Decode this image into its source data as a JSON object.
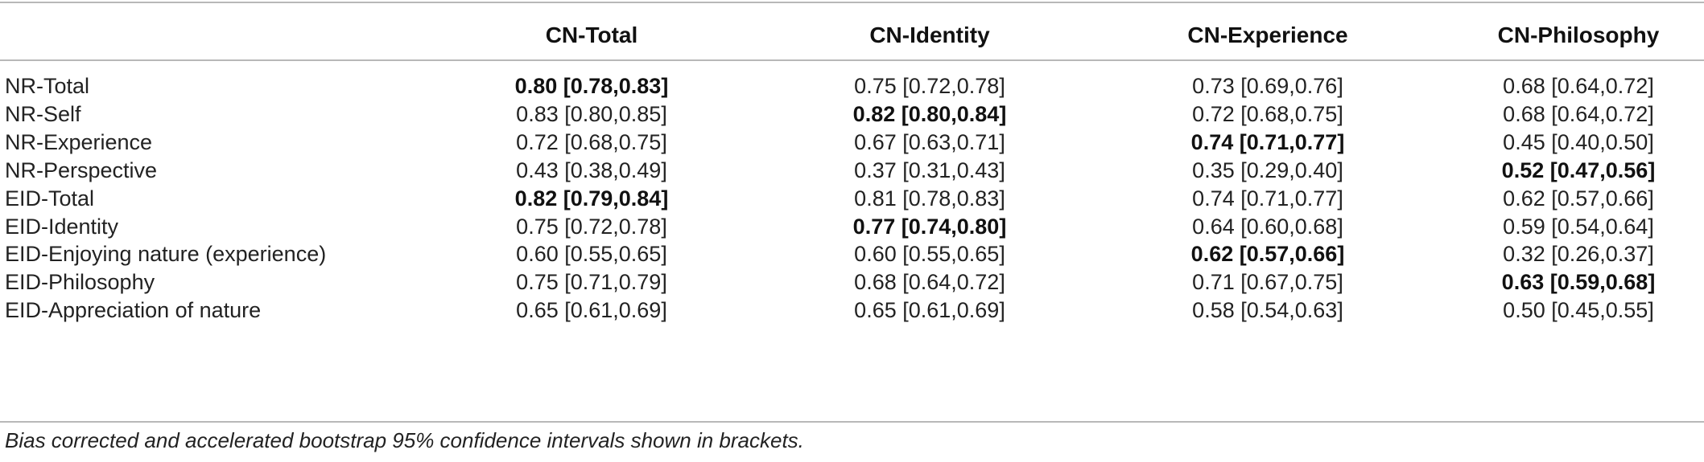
{
  "table": {
    "columns": [
      "",
      "CN-Total",
      "CN-Identity",
      "CN-Experience",
      "CN-Philosophy"
    ],
    "rows": [
      {
        "label": "NR-Total",
        "values": [
          "0.80 [0.78,0.83]",
          "0.75 [0.72,0.78]",
          "0.73 [0.69,0.76]",
          "0.68 [0.64,0.72]"
        ],
        "bold": [
          true,
          false,
          false,
          false
        ]
      },
      {
        "label": "NR-Self",
        "values": [
          "0.83 [0.80,0.85]",
          "0.82 [0.80,0.84]",
          "0.72 [0.68,0.75]",
          "0.68 [0.64,0.72]"
        ],
        "bold": [
          false,
          true,
          false,
          false
        ]
      },
      {
        "label": "NR-Experience",
        "values": [
          "0.72 [0.68,0.75]",
          "0.67 [0.63,0.71]",
          "0.74 [0.71,0.77]",
          "0.45 [0.40,0.50]"
        ],
        "bold": [
          false,
          false,
          true,
          false
        ]
      },
      {
        "label": "NR-Perspective",
        "values": [
          "0.43 [0.38,0.49]",
          "0.37 [0.31,0.43]",
          "0.35 [0.29,0.40]",
          "0.52 [0.47,0.56]"
        ],
        "bold": [
          false,
          false,
          false,
          true
        ]
      },
      {
        "label": "EID-Total",
        "values": [
          "0.82 [0.79,0.84]",
          "0.81 [0.78,0.83]",
          "0.74 [0.71,0.77]",
          "0.62 [0.57,0.66]"
        ],
        "bold": [
          true,
          false,
          false,
          false
        ]
      },
      {
        "label": "EID-Identity",
        "values": [
          "0.75 [0.72,0.78]",
          "0.77 [0.74,0.80]",
          "0.64 [0.60,0.68]",
          "0.59 [0.54,0.64]"
        ],
        "bold": [
          false,
          true,
          false,
          false
        ]
      },
      {
        "label": "EID-Enjoying nature (experience)",
        "values": [
          "0.60 [0.55,0.65]",
          "0.60 [0.55,0.65]",
          "0.62 [0.57,0.66]",
          "0.32 [0.26,0.37]"
        ],
        "bold": [
          false,
          false,
          true,
          false
        ]
      },
      {
        "label": "EID-Philosophy",
        "values": [
          "0.75 [0.71,0.79]",
          "0.68 [0.64,0.72]",
          "0.71 [0.67,0.75]",
          "0.63 [0.59,0.68]"
        ],
        "bold": [
          false,
          false,
          false,
          true
        ]
      },
      {
        "label": "EID-Appreciation of nature",
        "values": [
          "0.65 [0.61,0.69]",
          "0.65 [0.61,0.69]",
          "0.58 [0.54,0.63]",
          "0.50 [0.45,0.55]"
        ],
        "bold": [
          false,
          false,
          false,
          false
        ]
      }
    ]
  },
  "footnote": "Bias corrected and accelerated bootstrap 95% confidence intervals shown in brackets."
}
